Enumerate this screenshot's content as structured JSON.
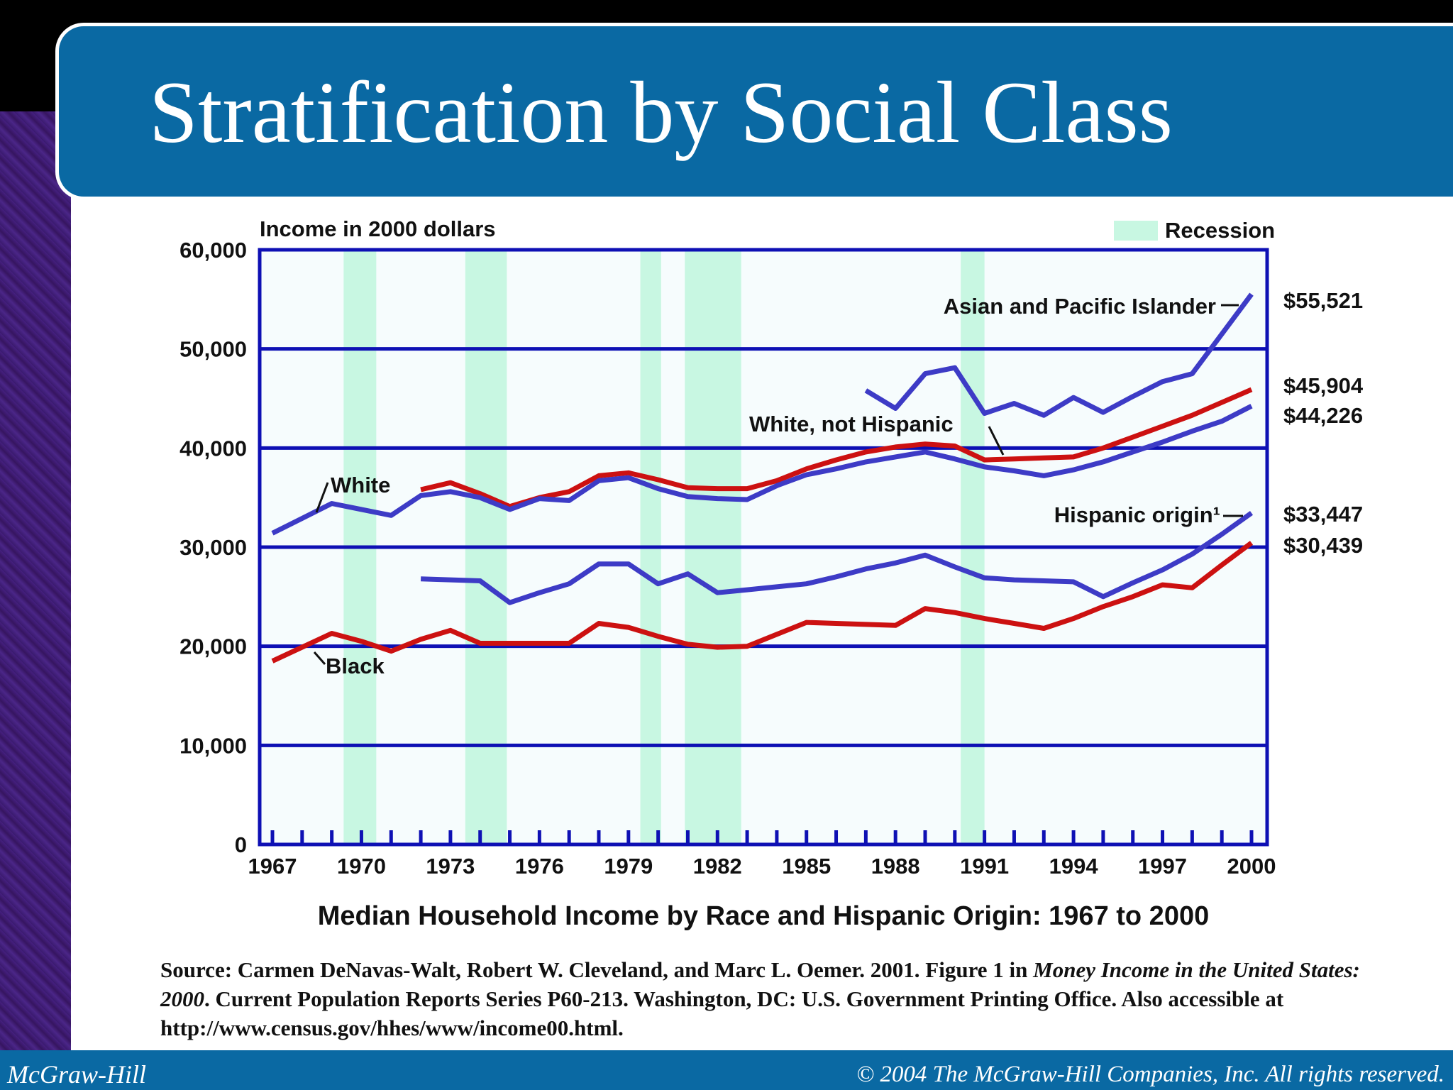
{
  "slide": {
    "title": "Stratification by Social Class",
    "source_prefix": "Source: Carmen DeNavas-Walt, Robert W. Cleveland, and Marc L. Oemer. 2001. Figure 1 in ",
    "source_italic": "Money Income in the United States: 2000",
    "source_suffix": ". Current Population Reports Series P60-213. Washington, DC: U.S. Government Printing Office. Also accessible at http://www.census.gov/hhes/www/income00.html.",
    "footer_left": "McGraw-Hill",
    "footer_right": "© 2004 The McGraw-Hill Companies, Inc. All rights reserved.",
    "colors": {
      "title_bar": "#0a69a3",
      "white_text": "#ffffff"
    }
  },
  "chart_data": {
    "type": "line",
    "title": "Median Household Income by Race and Hispanic Origin: 1967 to 2000",
    "ylabel": "Income in 2000 dollars",
    "xlim": [
      1967,
      2000
    ],
    "ylim": [
      0,
      60000
    ],
    "yticks": [
      "0",
      "10,000",
      "20,000",
      "30,000",
      "40,000",
      "50,000",
      "60,000"
    ],
    "ytick_values": [
      0,
      10000,
      20000,
      30000,
      40000,
      50000,
      60000
    ],
    "xticks": [
      "1967",
      "1970",
      "1973",
      "1976",
      "1979",
      "1982",
      "1985",
      "1988",
      "1991",
      "1994",
      "1997",
      "2000"
    ],
    "xtick_values": [
      1967,
      1970,
      1973,
      1976,
      1979,
      1982,
      1985,
      1988,
      1991,
      1994,
      1997,
      2000
    ],
    "grid": true,
    "legend": {
      "label": "Recession",
      "placement": "top-right",
      "color": "#c8f7e2"
    },
    "recessions": [
      [
        1969.4,
        1970.5
      ],
      [
        1973.5,
        1974.9
      ],
      [
        1979.4,
        1980.1
      ],
      [
        1980.9,
        1982.8
      ],
      [
        1990.2,
        1991.0
      ]
    ],
    "series": [
      {
        "label": "Asian and Pacific Islander",
        "end_value": "$55,521",
        "color": "#3d3bc6",
        "x": [
          1987,
          1988,
          1989,
          1990,
          1991,
          1992,
          1993,
          1994,
          1995,
          1996,
          1997,
          1998,
          1999,
          2000
        ],
        "y": [
          45800,
          44000,
          47500,
          48100,
          43500,
          44500,
          43300,
          45100,
          43600,
          45200,
          46700,
          47500,
          51500,
          55521
        ]
      },
      {
        "label": "White, not Hispanic",
        "end_value": "$45,904",
        "color": "#cc1111",
        "x": [
          1972,
          1973,
          1974,
          1975,
          1976,
          1977,
          1978,
          1979,
          1980,
          1981,
          1982,
          1983,
          1984,
          1985,
          1986,
          1987,
          1988,
          1989,
          1990,
          1991,
          1992,
          1993,
          1994,
          1995,
          1996,
          1997,
          1998,
          1999,
          2000
        ],
        "y": [
          35800,
          36500,
          35400,
          34100,
          35000,
          35600,
          37200,
          37500,
          36800,
          36000,
          35900,
          35900,
          36700,
          37900,
          38800,
          39600,
          40100,
          40400,
          40200,
          38800,
          38900,
          39000,
          39100,
          40000,
          41100,
          42200,
          43300,
          44600,
          45904
        ]
      },
      {
        "label": "White",
        "end_value": "$44,226",
        "color": "#3d3bc6",
        "x": [
          1967,
          1968,
          1969,
          1970,
          1971,
          1972,
          1973,
          1974,
          1975,
          1976,
          1977,
          1978,
          1979,
          1980,
          1981,
          1982,
          1983,
          1984,
          1985,
          1986,
          1987,
          1988,
          1989,
          1990,
          1991,
          1992,
          1993,
          1994,
          1995,
          1996,
          1997,
          1998,
          1999,
          2000
        ],
        "y": [
          31400,
          32900,
          34400,
          33800,
          33200,
          35200,
          35600,
          35000,
          33800,
          34900,
          34700,
          36700,
          37000,
          35900,
          35100,
          34900,
          34800,
          36200,
          37300,
          37900,
          38600,
          39100,
          39600,
          38900,
          38100,
          37700,
          37200,
          37800,
          38600,
          39600,
          40600,
          41700,
          42700,
          44226
        ]
      },
      {
        "label": "Hispanic origin¹",
        "end_value": "$33,447",
        "color": "#3d3bc6",
        "x": [
          1972,
          1973,
          1974,
          1975,
          1976,
          1977,
          1978,
          1979,
          1980,
          1981,
          1982,
          1983,
          1984,
          1985,
          1986,
          1987,
          1988,
          1989,
          1990,
          1991,
          1992,
          1993,
          1994,
          1995,
          1996,
          1997,
          1998,
          1999,
          2000
        ],
        "y": [
          26800,
          26700,
          26600,
          24400,
          25400,
          26300,
          28300,
          28300,
          26300,
          27300,
          25400,
          25700,
          26000,
          26300,
          27000,
          27800,
          28400,
          29200,
          28000,
          26900,
          26700,
          26600,
          26500,
          25000,
          26400,
          27700,
          29300,
          31300,
          33447
        ]
      },
      {
        "label": "Black",
        "end_value": "$30,439",
        "color": "#cc1111",
        "x": [
          1967,
          1968,
          1969,
          1970,
          1971,
          1972,
          1973,
          1974,
          1975,
          1976,
          1977,
          1978,
          1979,
          1980,
          1981,
          1982,
          1983,
          1984,
          1985,
          1986,
          1987,
          1988,
          1989,
          1990,
          1991,
          1992,
          1993,
          1994,
          1995,
          1996,
          1997,
          1998,
          1999,
          2000
        ],
        "y": [
          18500,
          19900,
          21300,
          20500,
          19500,
          20700,
          21600,
          20300,
          20300,
          20300,
          20300,
          22300,
          21900,
          21000,
          20200,
          19900,
          20000,
          21200,
          22400,
          22300,
          22200,
          22100,
          23800,
          23400,
          22800,
          22300,
          21800,
          22800,
          24000,
          25000,
          26200,
          25900,
          28200,
          30439
        ]
      }
    ]
  }
}
